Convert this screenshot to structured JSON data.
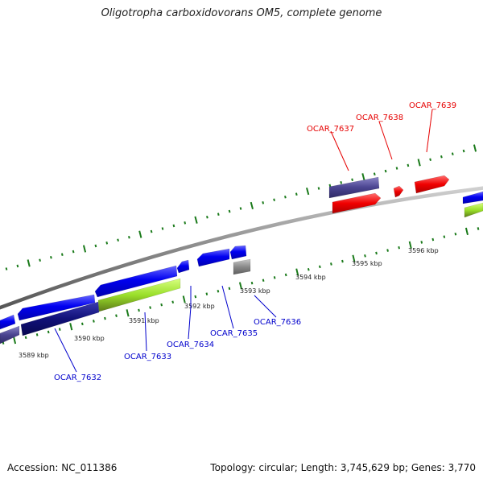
{
  "title": "Oligotropha carboxidovorans OM5, complete genome",
  "footer": {
    "accession": "Accession: NC_011386",
    "summary": "Topology: circular; Length: 3,745,629 bp; Genes: 3,770"
  },
  "colors": {
    "backbone": "#8a8a8a",
    "ticks": "#1a7a1a",
    "label_reverse": "#0000cc",
    "label_forward": "#e60000"
  },
  "scale_labels": [
    "3589 kbp",
    "3590 kbp",
    "3591 kbp",
    "3592 kbp",
    "3593 kbp",
    "3594 kbp",
    "3595 kbp",
    "3596 kbp"
  ],
  "gene_labels": [
    {
      "name": "OCAR_7632",
      "strand": "reverse"
    },
    {
      "name": "OCAR_7633",
      "strand": "reverse"
    },
    {
      "name": "OCAR_7634",
      "strand": "reverse"
    },
    {
      "name": "OCAR_7635",
      "strand": "reverse"
    },
    {
      "name": "OCAR_7636",
      "strand": "reverse"
    },
    {
      "name": "OCAR_7637",
      "strand": "forward"
    },
    {
      "name": "OCAR_7638",
      "strand": "forward"
    },
    {
      "name": "OCAR_7639",
      "strand": "forward"
    }
  ]
}
